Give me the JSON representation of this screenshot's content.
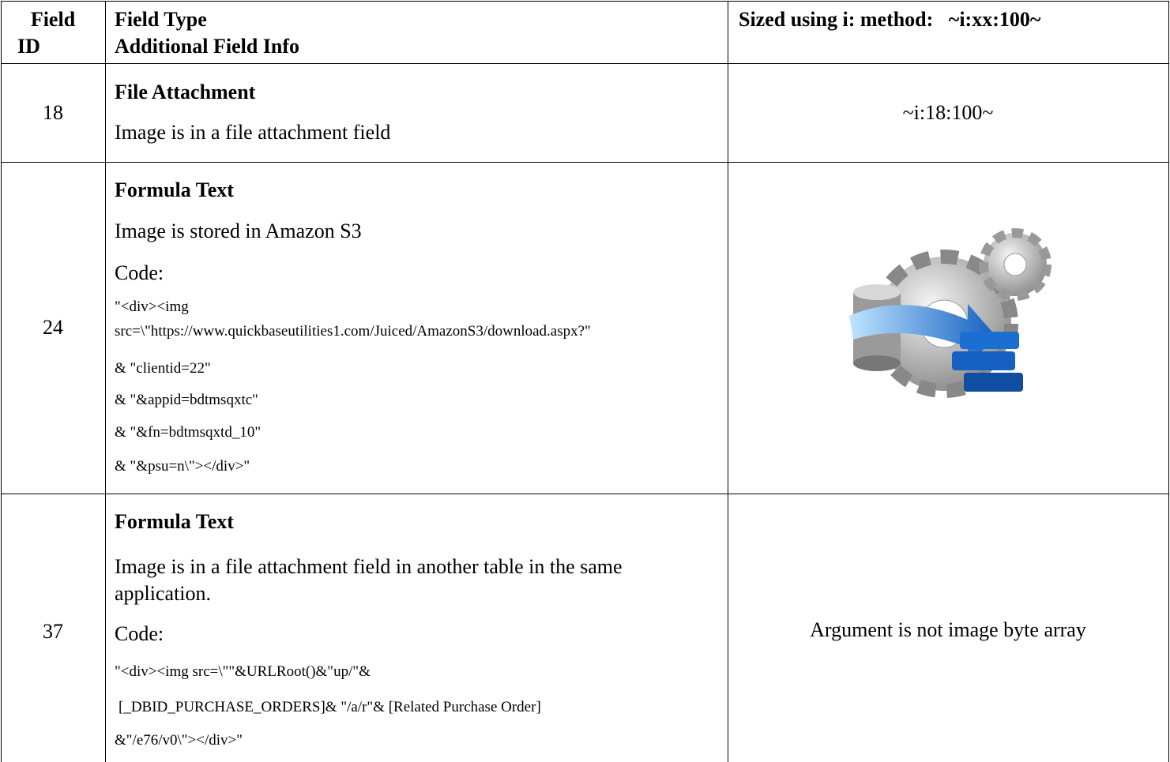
{
  "table": {
    "header": [
      [
        "Field",
        "ID"
      ],
      [
        "Field Type",
        "Additional Field Info"
      ],
      [
        "Sized using i: method:   ~i:xx:100~"
      ]
    ],
    "rows": [
      {
        "id": "18",
        "type": "File Attachment",
        "info": [
          "Image is in a file attachment field"
        ],
        "result": "~i:18:100~"
      },
      {
        "id": "24",
        "type": "Formula Text",
        "info": [
          "Image is stored in Amazon S3"
        ],
        "code_label": "Code:",
        "code": [
          "\"<div><img",
          "src=\\\"https://www.quickbaseutilities1.com/Juiced/AmazonS3/download.aspx?\"",
          "& \"clientid=22\"",
          "& \"&appid=bdtmsqxtc\"",
          "& \"&fn=bdtmsqxtd_10\"",
          "& \"&psu=n\\\"></div>\""
        ]
      },
      {
        "id": "37",
        "type": "Formula Text",
        "info": [
          "Image is in a file attachment field in another table in the same application."
        ],
        "code_label": "Code:",
        "code": [
          "\"<div><img src=\\\"\"&URLRoot()&\"up/\"&",
          "[_DBID_PURCHASE_ORDERS]& \"/a/r\"& [Related Purchase Order]",
          "&\"/e76/v0\\\"></div>\""
        ],
        "result": "Argument is not image byte array"
      }
    ]
  }
}
